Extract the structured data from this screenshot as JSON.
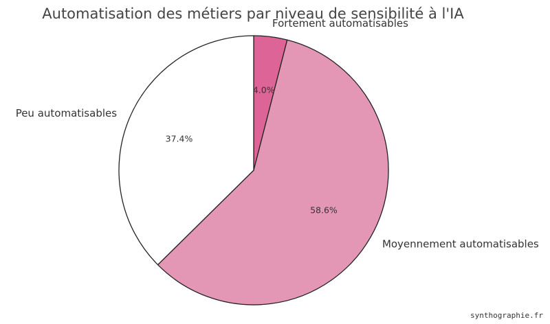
{
  "chart_data": {
    "type": "pie",
    "title": "Automatisation des métiers par niveau de sensibilité à l'IA",
    "slices": [
      {
        "label": "Fortement automatisables",
        "value": 4.0,
        "pct_label": "4.0%",
        "color": "#dc6496"
      },
      {
        "label": "Moyennement automatisables",
        "value": 58.6,
        "pct_label": "58.6%",
        "color": "#e497b5"
      },
      {
        "label": "Peu automatisables",
        "value": 37.4,
        "pct_label": "37.4%",
        "color": "#ffffff"
      }
    ],
    "start_angle": "90 degrees (top)",
    "direction": "clockwise",
    "edge_color": "#222222"
  },
  "watermark": "synthographie.fr"
}
